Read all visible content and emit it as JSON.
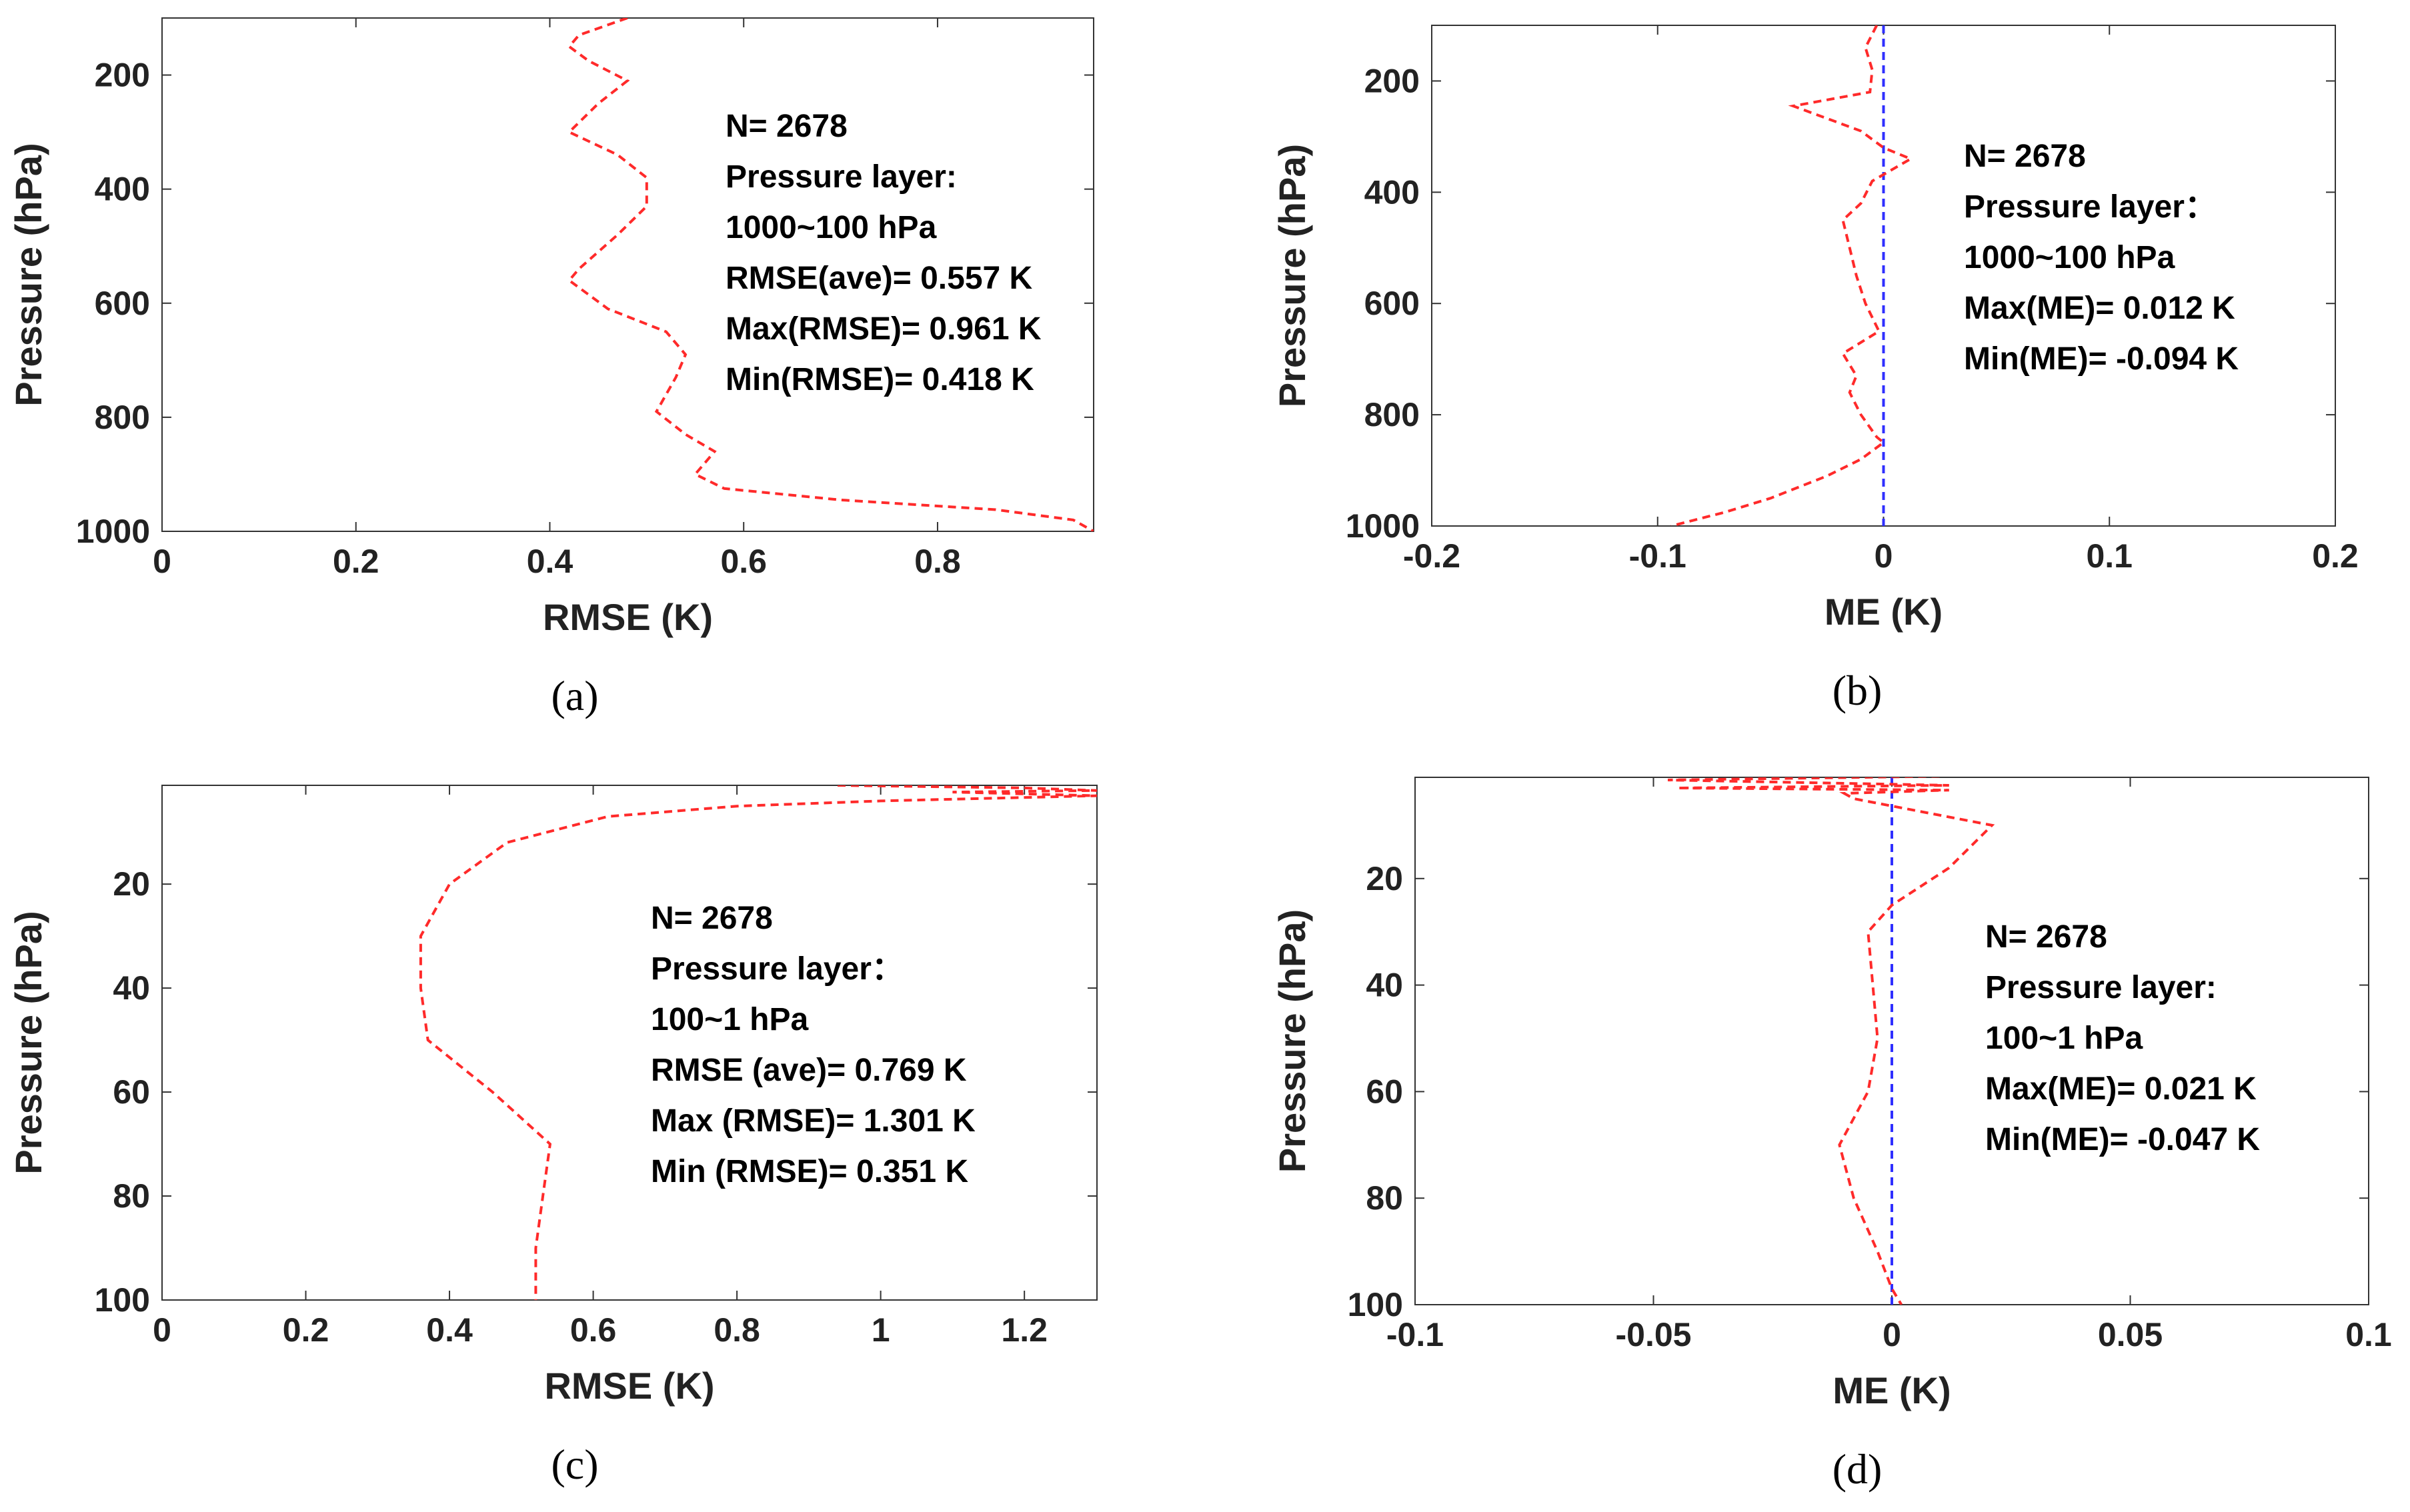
{
  "styles": {
    "profile_color": "#ff2a2a",
    "zero_line_color": "#2f2fff",
    "axis_color": "#333333",
    "text_color": "#000000"
  },
  "chart_data": [
    {
      "id": "a",
      "panel_label": "(a)",
      "type": "line",
      "xlabel": "RMSE (K)",
      "ylabel": "Pressure (hPa)",
      "xlim": [
        0,
        0.961
      ],
      "ylim": [
        100,
        1000
      ],
      "y_reversed": true,
      "xticks": [
        0,
        0.2,
        0.4,
        0.6,
        0.8
      ],
      "xtick_labels": [
        "0",
        "0.2",
        "0.4",
        "0.6",
        "0.8"
      ],
      "yticks": [
        200,
        400,
        600,
        800,
        1000
      ],
      "ytick_labels": [
        "200",
        "400",
        "600",
        "800",
        "1000"
      ],
      "series": [
        {
          "style": "dashed",
          "points": [
            [
              0.48,
              100
            ],
            [
              0.43,
              130
            ],
            [
              0.42,
              150
            ],
            [
              0.44,
              175
            ],
            [
              0.48,
              210
            ],
            [
              0.45,
              250
            ],
            [
              0.42,
              300
            ],
            [
              0.47,
              340
            ],
            [
              0.5,
              380
            ],
            [
              0.5,
              430
            ],
            [
              0.47,
              480
            ],
            [
              0.43,
              540
            ],
            [
              0.42,
              560
            ],
            [
              0.46,
              610
            ],
            [
              0.52,
              650
            ],
            [
              0.54,
              690
            ],
            [
              0.53,
              730
            ],
            [
              0.51,
              790
            ],
            [
              0.54,
              830
            ],
            [
              0.57,
              860
            ],
            [
              0.56,
              880
            ],
            [
              0.55,
              900
            ],
            [
              0.58,
              925
            ],
            [
              0.7,
              945
            ],
            [
              0.86,
              962
            ],
            [
              0.94,
              980
            ],
            [
              0.961,
              1000
            ]
          ]
        }
      ],
      "annotation": [
        "N= 2678",
        "Pressure layer:",
        "1000~100 hPa",
        "RMSE(ave)= 0.557 K",
        "Max(RMSE)= 0.961 K",
        "Min(RMSE)= 0.418 K"
      ]
    },
    {
      "id": "b",
      "panel_label": "(b)",
      "type": "line",
      "xlabel": "ME (K)",
      "ylabel": "Pressure (hPa)",
      "xlim": [
        -0.2,
        0.2
      ],
      "ylim": [
        100,
        1000
      ],
      "y_reversed": true,
      "xticks": [
        -0.2,
        -0.1,
        0,
        0.1,
        0.2
      ],
      "xtick_labels": [
        "-0.2",
        "-0.1",
        "0",
        "0.1",
        "0.2"
      ],
      "yticks": [
        200,
        400,
        600,
        800,
        1000
      ],
      "ytick_labels": [
        "200",
        "400",
        "600",
        "800",
        "1000"
      ],
      "zero_line": 0,
      "series": [
        {
          "style": "dashed",
          "points": [
            [
              -0.003,
              100
            ],
            [
              -0.008,
              140
            ],
            [
              -0.005,
              180
            ],
            [
              -0.006,
              220
            ],
            [
              -0.04,
              245
            ],
            [
              -0.01,
              290
            ],
            [
              0.0,
              320
            ],
            [
              0.012,
              340
            ],
            [
              -0.005,
              380
            ],
            [
              -0.01,
              420
            ],
            [
              -0.018,
              450
            ],
            [
              -0.015,
              500
            ],
            [
              -0.012,
              550
            ],
            [
              -0.008,
              600
            ],
            [
              -0.002,
              650
            ],
            [
              -0.018,
              690
            ],
            [
              -0.012,
              730
            ],
            [
              -0.015,
              760
            ],
            [
              -0.01,
              800
            ],
            [
              -0.003,
              840
            ],
            [
              0.0,
              850
            ],
            [
              -0.01,
              880
            ],
            [
              -0.025,
              910
            ],
            [
              -0.05,
              950
            ],
            [
              -0.07,
              975
            ],
            [
              -0.094,
              1000
            ]
          ]
        }
      ],
      "annotation": [
        "N= 2678",
        "Pressure layer：",
        "1000~100 hPa",
        "Max(ME)= 0.012 K",
        "Min(ME)= -0.094 K"
      ]
    },
    {
      "id": "c",
      "panel_label": "(c)",
      "type": "line",
      "xlabel": "RMSE (K)",
      "ylabel": "Pressure (hPa)",
      "xlim": [
        0,
        1.301
      ],
      "ylim": [
        1,
        100
      ],
      "y_reversed": true,
      "xticks": [
        0,
        0.2,
        0.4,
        0.6,
        0.8,
        1,
        1.2
      ],
      "xtick_labels": [
        "0",
        "0.2",
        "0.4",
        "0.6",
        "0.8",
        "1",
        "1.2"
      ],
      "yticks": [
        20,
        40,
        60,
        80,
        100
      ],
      "ytick_labels": [
        "20",
        "40",
        "60",
        "80",
        "100"
      ],
      "series": [
        {
          "style": "dashed",
          "points": [
            [
              0.94,
              1.0
            ],
            [
              1.2,
              1.5
            ],
            [
              1.301,
              2.0
            ],
            [
              1.1,
              2.3
            ],
            [
              1.301,
              3.0
            ],
            [
              1.0,
              4.0
            ],
            [
              0.8,
              5.0
            ],
            [
              0.62,
              7.0
            ],
            [
              0.48,
              12.0
            ],
            [
              0.4,
              20.0
            ],
            [
              0.36,
              30.0
            ],
            [
              0.36,
              40.0
            ],
            [
              0.37,
              50.0
            ],
            [
              0.46,
              60.0
            ],
            [
              0.54,
              70.0
            ],
            [
              0.53,
              80.0
            ],
            [
              0.52,
              90.0
            ],
            [
              0.52,
              100.0
            ]
          ]
        }
      ],
      "annotation": [
        "N= 2678",
        "Pressure layer：",
        "100~1 hPa",
        "RMSE (ave)= 0.769 K",
        "Max (RMSE)= 1.301 K",
        "Min (RMSE)= 0.351 K"
      ]
    },
    {
      "id": "d",
      "panel_label": "(d)",
      "type": "line",
      "xlabel": "ME (K)",
      "ylabel": "Pressure (hPa)",
      "xlim": [
        -0.1,
        0.1
      ],
      "ylim": [
        1,
        100
      ],
      "y_reversed": true,
      "xticks": [
        -0.1,
        -0.05,
        0,
        0.05,
        0.1
      ],
      "xtick_labels": [
        "-0.1",
        "-0.05",
        "0",
        "0.05",
        "0.1"
      ],
      "yticks": [
        20,
        40,
        60,
        80,
        100
      ],
      "ytick_labels": [
        "20",
        "40",
        "60",
        "80",
        "100"
      ],
      "zero_line": 0,
      "series": [
        {
          "style": "dashed",
          "points": [
            [
              0.01,
              0.8
            ],
            [
              -0.047,
              1.5
            ],
            [
              0.012,
              2.5
            ],
            [
              -0.045,
              3.0
            ],
            [
              0.012,
              3.4
            ],
            [
              -0.01,
              4.0
            ],
            [
              -0.008,
              5.0
            ],
            [
              0.021,
              10.0
            ],
            [
              0.012,
              18.0
            ],
            [
              0.0,
              25.0
            ],
            [
              -0.005,
              30.0
            ],
            [
              -0.004,
              40.0
            ],
            [
              -0.003,
              50.0
            ],
            [
              -0.005,
              60.0
            ],
            [
              -0.011,
              70.0
            ],
            [
              -0.008,
              80.0
            ],
            [
              -0.003,
              90.0
            ],
            [
              0.0,
              97.0
            ],
            [
              0.002,
              100.0
            ]
          ]
        }
      ],
      "annotation": [
        "N= 2678",
        "Pressure layer:",
        "100~1 hPa",
        "Max(ME)= 0.021 K",
        "Min(ME)= -0.047 K"
      ]
    }
  ]
}
